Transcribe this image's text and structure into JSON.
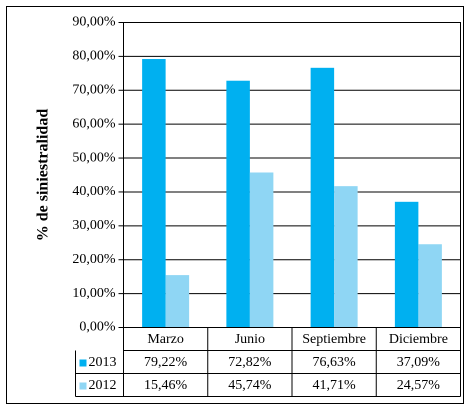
{
  "chart_data": {
    "type": "bar",
    "y_label": "% de siniestralidad",
    "categories": [
      "Marzo",
      "Junio",
      "Septiembre",
      "Diciembre"
    ],
    "series": [
      {
        "name": "2013",
        "color": "#00b0f0",
        "values": [
          79.22,
          72.82,
          76.63,
          37.09
        ],
        "value_labels": [
          "79,22%",
          "72,82%",
          "76,63%",
          "37,09%"
        ]
      },
      {
        "name": "2012",
        "color": "#8fd6f4",
        "values": [
          15.46,
          45.74,
          41.71,
          24.57
        ],
        "value_labels": [
          "15,46%",
          "45,74%",
          "41,71%",
          "24,57%"
        ]
      }
    ],
    "ylim": [
      0,
      90
    ],
    "yticks": [
      {
        "value": 0,
        "label": "0,00%"
      },
      {
        "value": 10,
        "label": "10,00%"
      },
      {
        "value": 20,
        "label": "20,00%"
      },
      {
        "value": 30,
        "label": "30,00%"
      },
      {
        "value": 40,
        "label": "40,00%"
      },
      {
        "value": 50,
        "label": "50,00%"
      },
      {
        "value": 60,
        "label": "60,00%"
      },
      {
        "value": 70,
        "label": "70,00%"
      },
      {
        "value": 80,
        "label": "80,00%"
      },
      {
        "value": 90,
        "label": "90,00%"
      }
    ],
    "grid": true
  }
}
